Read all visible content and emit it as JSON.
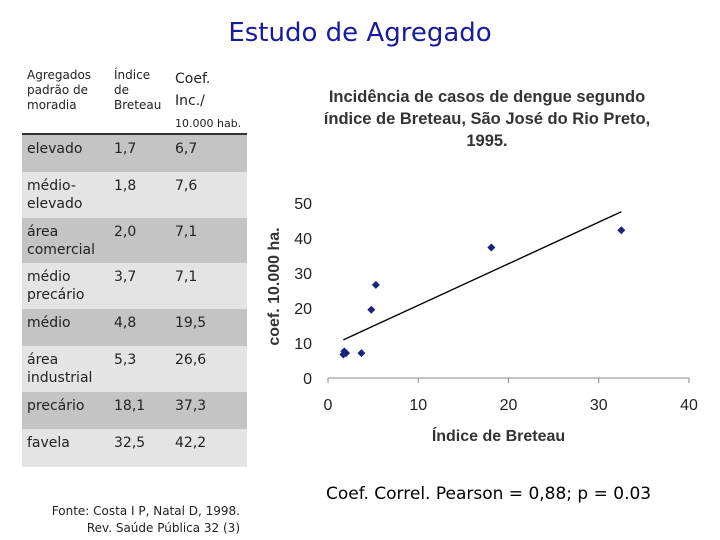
{
  "title": "Estudo de Agregado",
  "table": {
    "headers": {
      "agregados": "Agregados padrão de moradia",
      "indice": "Índice de Breteau",
      "coef": "Coef. Inc./",
      "coef_unit": "10.000 hab."
    },
    "rows": [
      {
        "agregado": "elevado",
        "indice": "1,7",
        "coef": "6,7"
      },
      {
        "agregado": "médio-elevado",
        "indice": "1,8",
        "coef": "7,6"
      },
      {
        "agregado": "área comercial",
        "indice": "2,0",
        "coef": "7,1"
      },
      {
        "agregado": "médio precário",
        "indice": "3,7",
        "coef": "7,1"
      },
      {
        "agregado": "médio",
        "indice": "4,8",
        "coef": "19,5"
      },
      {
        "agregado": "área industrial",
        "indice": "5,3",
        "coef": "26,6"
      },
      {
        "agregado": "precário",
        "indice": "18,1",
        "coef": "37,3"
      },
      {
        "agregado": "favela",
        "indice": "32,5",
        "coef": "42,2"
      }
    ]
  },
  "source": {
    "line1": "Fonte: Costa I P, Natal D, 1998.",
    "line2": "Rev. Saúde Pública 32 (3)"
  },
  "correlation": "Coef. Correl. Pearson = 0,88; p = 0.03",
  "chart_data": {
    "type": "scatter",
    "title_line1": "Incidência de casos de dengue segundo",
    "title_line2": "índice de Breteau, São José do Rio Preto,",
    "title_line3": "1995.",
    "xlabel": "Índice de Breteau",
    "ylabel": "coef. 10.000 ha.",
    "xlim": [
      0,
      40
    ],
    "ylim": [
      0,
      50
    ],
    "xticks": [
      0,
      10,
      20,
      30,
      40
    ],
    "yticks": [
      0,
      10,
      20,
      30,
      40,
      50
    ],
    "points": [
      {
        "x": 1.7,
        "y": 6.7
      },
      {
        "x": 1.8,
        "y": 7.6
      },
      {
        "x": 2.0,
        "y": 7.1
      },
      {
        "x": 3.7,
        "y": 7.1
      },
      {
        "x": 4.8,
        "y": 19.5
      },
      {
        "x": 5.3,
        "y": 26.6
      },
      {
        "x": 18.1,
        "y": 37.3
      },
      {
        "x": 32.5,
        "y": 42.2
      }
    ],
    "trendline": {
      "x1": 1.7,
      "y1": 10.9,
      "x2": 32.5,
      "y2": 47.5
    },
    "marker_color": "#1a237e",
    "line_color": "#000000"
  }
}
